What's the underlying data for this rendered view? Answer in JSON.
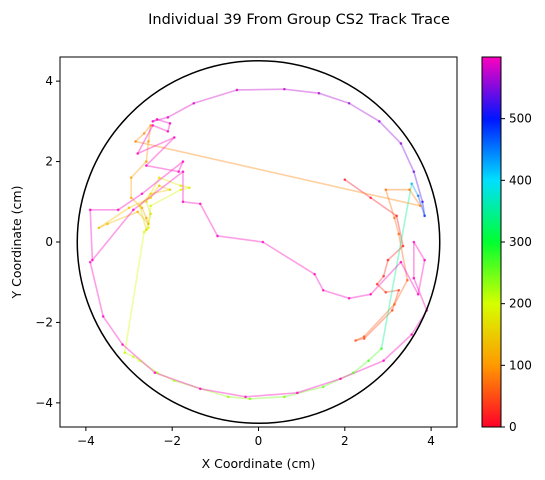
{
  "chart_data": {
    "type": "line",
    "title": "Individual 39 From Group CS2 Track Trace",
    "xlabel": "X Coordinate (cm)",
    "ylabel": "Y Coordinate (cm)",
    "xlim": [
      -4.6,
      4.6
    ],
    "ylim": [
      -4.6,
      4.6
    ],
    "xticks": [
      -4,
      -2,
      0,
      2,
      4
    ],
    "yticks": [
      -4,
      -2,
      0,
      2,
      4
    ],
    "xtick_labels": [
      "−4",
      "−2",
      "0",
      "2",
      "4"
    ],
    "ytick_labels": [
      "−4",
      "−2",
      "0",
      "2",
      "4"
    ],
    "grid": false,
    "arena_circle": {
      "cx": 0,
      "cy": 0,
      "r": 4.2,
      "color": "#000000"
    },
    "colorbar": {
      "range": [
        0,
        600
      ],
      "ticks": [
        0,
        100,
        200,
        300,
        400,
        500
      ],
      "tick_labels": [
        "0",
        "100",
        "200",
        "300",
        "400",
        "500"
      ],
      "colormap": "gist_rainbow"
    },
    "track": [
      {
        "x": 2.0,
        "y": 1.55,
        "t": 8
      },
      {
        "x": 2.6,
        "y": 1.1,
        "t": 12
      },
      {
        "x": 3.2,
        "y": 0.65,
        "t": 16
      },
      {
        "x": 3.35,
        "y": -0.1,
        "t": 20
      },
      {
        "x": 3.0,
        "y": -0.45,
        "t": 24
      },
      {
        "x": 2.9,
        "y": -0.85,
        "t": 28
      },
      {
        "x": 2.75,
        "y": -1.05,
        "t": 32
      },
      {
        "x": 2.95,
        "y": -1.25,
        "t": 36
      },
      {
        "x": 3.25,
        "y": -1.2,
        "t": 40
      },
      {
        "x": 3.1,
        "y": -1.7,
        "t": 44
      },
      {
        "x": 2.45,
        "y": -2.4,
        "t": 48
      },
      {
        "x": 2.25,
        "y": -2.45,
        "t": 52
      },
      {
        "x": 2.45,
        "y": -2.35,
        "t": 56
      },
      {
        "x": 3.15,
        "y": -1.55,
        "t": 60
      },
      {
        "x": 3.45,
        "y": -0.95,
        "t": 64
      },
      {
        "x": 3.25,
        "y": 0.2,
        "t": 68
      },
      {
        "x": 3.15,
        "y": 0.6,
        "t": 72
      },
      {
        "x": 2.95,
        "y": 1.3,
        "t": 76
      },
      {
        "x": 3.5,
        "y": 1.3,
        "t": 80
      },
      {
        "x": 3.75,
        "y": 0.9,
        "t": 84
      },
      {
        "x": -2.85,
        "y": 2.5,
        "t": 88
      },
      {
        "x": -2.65,
        "y": 2.7,
        "t": 92
      },
      {
        "x": -2.5,
        "y": 2.9,
        "t": 96
      },
      {
        "x": -2.55,
        "y": 2.5,
        "t": 100
      },
      {
        "x": -2.6,
        "y": 2.0,
        "t": 104
      },
      {
        "x": -2.95,
        "y": 1.6,
        "t": 108
      },
      {
        "x": -2.95,
        "y": 1.1,
        "t": 112
      },
      {
        "x": -2.7,
        "y": 0.85,
        "t": 116
      },
      {
        "x": -2.6,
        "y": 0.6,
        "t": 120
      },
      {
        "x": -2.55,
        "y": 0.45,
        "t": 124
      },
      {
        "x": -2.8,
        "y": 0.75,
        "t": 128
      },
      {
        "x": -3.5,
        "y": 0.45,
        "t": 132
      },
      {
        "x": -3.7,
        "y": 0.35,
        "t": 136
      },
      {
        "x": -3.0,
        "y": 0.85,
        "t": 140
      },
      {
        "x": -2.5,
        "y": 1.1,
        "t": 144
      },
      {
        "x": -2.3,
        "y": 1.4,
        "t": 148
      },
      {
        "x": -2.05,
        "y": 1.3,
        "t": 152
      },
      {
        "x": -2.5,
        "y": 1.2,
        "t": 156
      },
      {
        "x": -2.75,
        "y": 0.9,
        "t": 160
      },
      {
        "x": -2.6,
        "y": 0.3,
        "t": 164
      },
      {
        "x": -2.5,
        "y": 0.7,
        "t": 168
      },
      {
        "x": -2.6,
        "y": 1.0,
        "t": 172
      },
      {
        "x": -2.3,
        "y": 1.6,
        "t": 176
      },
      {
        "x": -1.8,
        "y": 1.4,
        "t": 180
      },
      {
        "x": -1.6,
        "y": 1.35,
        "t": 184
      },
      {
        "x": -1.8,
        "y": 1.3,
        "t": 188
      },
      {
        "x": -2.5,
        "y": 0.9,
        "t": 192
      },
      {
        "x": -2.55,
        "y": 0.35,
        "t": 196
      },
      {
        "x": -2.65,
        "y": 0.25,
        "t": 200
      },
      {
        "x": -3.1,
        "y": -2.75,
        "t": 206
      },
      {
        "x": -2.9,
        "y": -2.85,
        "t": 210
      },
      {
        "x": -2.75,
        "y": -2.95,
        "t": 214
      },
      {
        "x": -2.35,
        "y": -3.25,
        "t": 222
      },
      {
        "x": -1.95,
        "y": -3.45,
        "t": 228
      },
      {
        "x": -0.7,
        "y": -3.85,
        "t": 232
      },
      {
        "x": -0.2,
        "y": -3.9,
        "t": 240
      },
      {
        "x": 0.6,
        "y": -3.85,
        "t": 246
      },
      {
        "x": 1.5,
        "y": -3.6,
        "t": 252
      },
      {
        "x": 2.2,
        "y": -3.25,
        "t": 258
      },
      {
        "x": 2.55,
        "y": -2.95,
        "t": 264
      },
      {
        "x": 2.85,
        "y": -2.65,
        "t": 272
      },
      {
        "x": 3.55,
        "y": 1.45,
        "t": 420
      },
      {
        "x": 3.7,
        "y": 1.15,
        "t": 450
      },
      {
        "x": 3.85,
        "y": 0.65,
        "t": 490
      },
      {
        "x": 3.8,
        "y": 1.0,
        "t": 520
      },
      {
        "x": 3.6,
        "y": 1.75,
        "t": 545
      },
      {
        "x": 3.3,
        "y": 2.45,
        "t": 555
      },
      {
        "x": 2.8,
        "y": 3.0,
        "t": 560
      },
      {
        "x": 2.1,
        "y": 3.45,
        "t": 565
      },
      {
        "x": 1.4,
        "y": 3.7,
        "t": 570
      },
      {
        "x": 0.6,
        "y": 3.8,
        "t": 575
      },
      {
        "x": -0.5,
        "y": 3.78,
        "t": 580
      },
      {
        "x": -1.5,
        "y": 3.45,
        "t": 585
      },
      {
        "x": -2.1,
        "y": 3.1,
        "t": 590
      },
      {
        "x": -2.45,
        "y": 3.0,
        "t": 592
      },
      {
        "x": -2.35,
        "y": 3.05,
        "t": 594
      },
      {
        "x": -2.05,
        "y": 2.95,
        "t": 596
      },
      {
        "x": -2.1,
        "y": 2.75,
        "t": 597
      },
      {
        "x": -2.45,
        "y": 2.9,
        "t": 598
      },
      {
        "x": -2.8,
        "y": 2.2,
        "t": 599
      },
      {
        "x": -1.95,
        "y": 2.6,
        "t": 599
      },
      {
        "x": -2.6,
        "y": 1.9,
        "t": 599
      },
      {
        "x": -1.85,
        "y": 1.75,
        "t": 599
      },
      {
        "x": -1.75,
        "y": 2.0,
        "t": 599
      },
      {
        "x": -2.7,
        "y": 1.2,
        "t": 599
      },
      {
        "x": -3.25,
        "y": 0.8,
        "t": 599
      },
      {
        "x": -3.9,
        "y": 0.8,
        "t": 599
      },
      {
        "x": -3.85,
        "y": -0.45,
        "t": 599
      },
      {
        "x": -2.9,
        "y": 0.8,
        "t": 599
      },
      {
        "x": -1.75,
        "y": 1.75,
        "t": 599
      },
      {
        "x": -1.75,
        "y": 1.0,
        "t": 599
      },
      {
        "x": -1.35,
        "y": 0.95,
        "t": 599
      },
      {
        "x": -0.95,
        "y": 0.15,
        "t": 599
      },
      {
        "x": 0.1,
        "y": 0.0,
        "t": 599
      },
      {
        "x": 1.3,
        "y": -0.8,
        "t": 599
      },
      {
        "x": 1.5,
        "y": -1.2,
        "t": 599
      },
      {
        "x": 2.1,
        "y": -1.4,
        "t": 599
      },
      {
        "x": 2.6,
        "y": -1.3,
        "t": 599
      },
      {
        "x": 3.3,
        "y": -0.5,
        "t": 599
      },
      {
        "x": 3.7,
        "y": -1.3,
        "t": 599
      },
      {
        "x": 3.85,
        "y": -0.45,
        "t": 599
      },
      {
        "x": 3.6,
        "y": 0.0,
        "t": 599
      },
      {
        "x": 3.6,
        "y": -0.9,
        "t": 599
      },
      {
        "x": 3.9,
        "y": -1.7,
        "t": 599
      },
      {
        "x": 3.55,
        "y": -2.3,
        "t": 599
      },
      {
        "x": 2.9,
        "y": -2.95,
        "t": 599
      },
      {
        "x": 1.9,
        "y": -3.4,
        "t": 599
      },
      {
        "x": 0.9,
        "y": -3.75,
        "t": 599
      },
      {
        "x": -0.3,
        "y": -3.85,
        "t": 599
      },
      {
        "x": -1.35,
        "y": -3.65,
        "t": 599
      },
      {
        "x": -2.4,
        "y": -3.25,
        "t": 599
      },
      {
        "x": -3.15,
        "y": -2.55,
        "t": 599
      },
      {
        "x": -3.6,
        "y": -1.85,
        "t": 599
      },
      {
        "x": -3.9,
        "y": -0.5,
        "t": 599
      }
    ]
  }
}
